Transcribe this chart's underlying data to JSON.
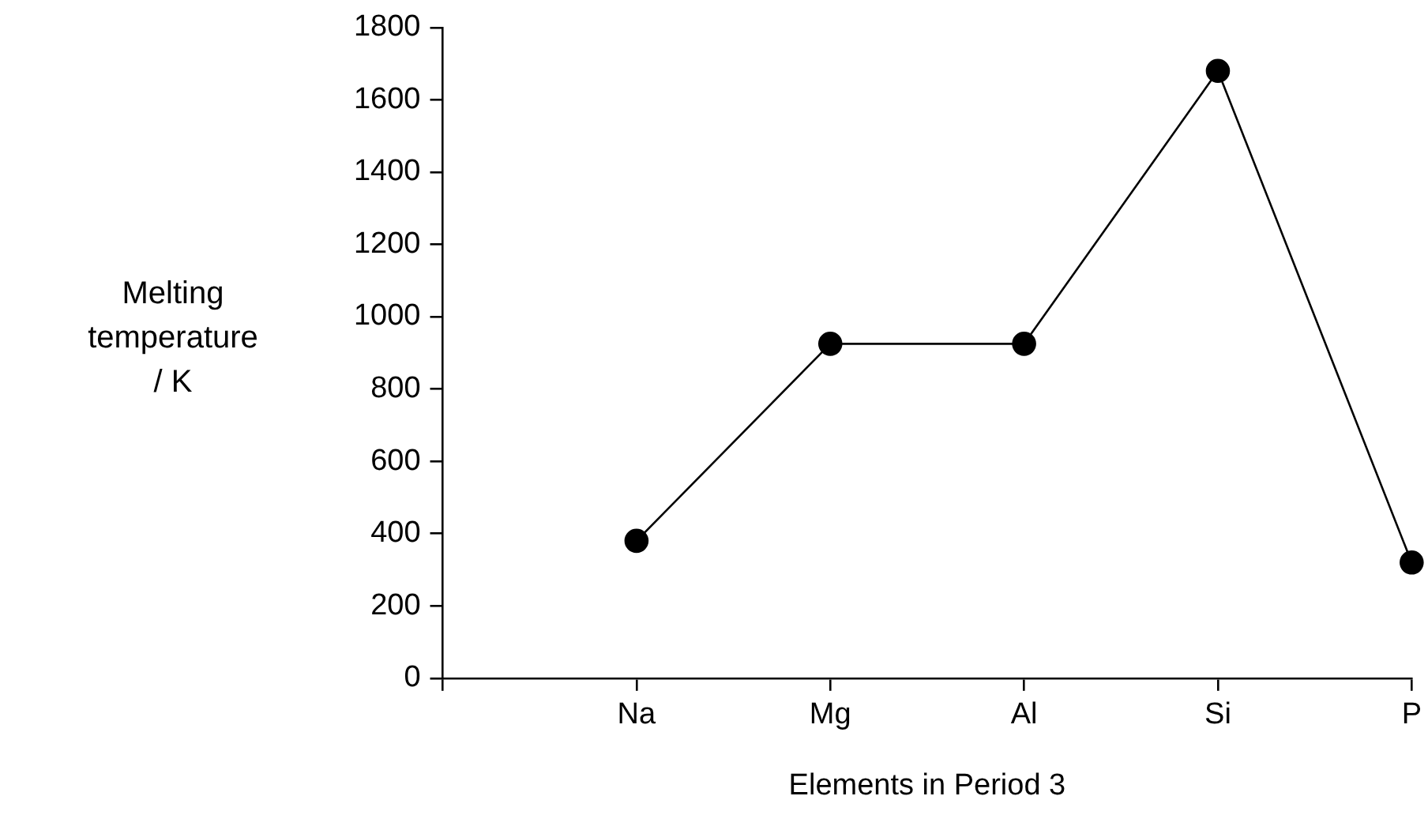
{
  "chart_data": {
    "type": "line",
    "xlabel": "Elements in Period 3",
    "ylabel": "Melting temperature / K",
    "categories": [
      null,
      "Na",
      "Mg",
      "Al",
      "Si",
      "P"
    ],
    "series": [
      {
        "color": "#000000",
        "values": [
          null,
          380,
          925,
          925,
          1680,
          320
        ]
      }
    ],
    "ylim": [
      0,
      1800
    ],
    "yticks": [
      0,
      200,
      400,
      600,
      800,
      1000,
      1200,
      1400,
      1600,
      1800
    ],
    "grid": false,
    "legend": false,
    "marker": "circle",
    "line_style": "solid"
  }
}
